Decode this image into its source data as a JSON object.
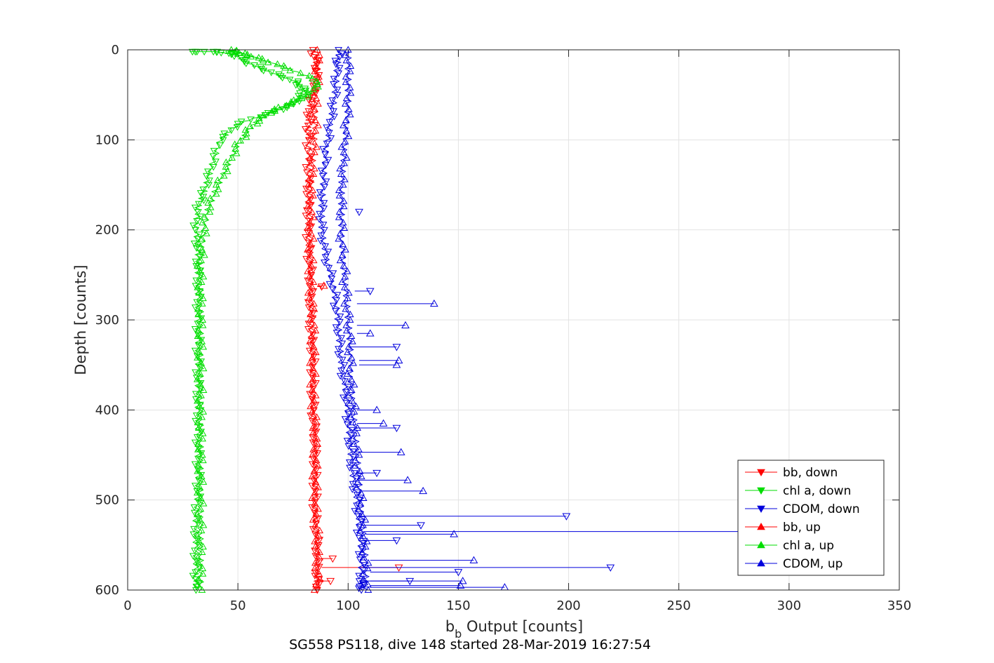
{
  "chart_data": {
    "type": "line",
    "xlabel_main": "b",
    "xlabel_sub": "b",
    "xlabel_rest": " Output [counts]",
    "ylabel": "Depth [counts]",
    "caption": "SG558 PS118, dive 148 started 28-Mar-2019 16:27:54",
    "xlim": [
      0,
      350
    ],
    "ylim": [
      0,
      600
    ],
    "y_reversed": true,
    "grid": true,
    "legend_position": "bottom-right",
    "xticks": [
      "0",
      "50",
      "100",
      "150",
      "200",
      "250",
      "300",
      "350"
    ],
    "yticks": [
      "0",
      "100",
      "200",
      "300",
      "400",
      "500",
      "600"
    ],
    "series": [
      {
        "name": "bb, down",
        "color": "#ff0000",
        "marker": "triangle-down",
        "points": [
          [
            84,
            0
          ],
          [
            86,
            20
          ],
          [
            85,
            40
          ],
          [
            83,
            60
          ],
          [
            82,
            80
          ],
          [
            82,
            100
          ],
          [
            82,
            130
          ],
          [
            82,
            160
          ],
          [
            82,
            190
          ],
          [
            82,
            220
          ],
          [
            83,
            250
          ],
          [
            83,
            280
          ],
          [
            83,
            310
          ],
          [
            84,
            340
          ],
          [
            84,
            370
          ],
          [
            84,
            400
          ],
          [
            85,
            430
          ],
          [
            85,
            460
          ],
          [
            85,
            490
          ],
          [
            85,
            520
          ],
          [
            86,
            550
          ],
          [
            86,
            580
          ],
          [
            86,
            600
          ]
        ],
        "spikes": [
          [
            86,
            263,
            88
          ],
          [
            88,
            565,
            93
          ],
          [
            88,
            575,
            123
          ],
          [
            87,
            590,
            92
          ]
        ]
      },
      {
        "name": "chl a, down",
        "color": "#00dd00",
        "marker": "triangle-down",
        "points": [
          [
            28,
            2
          ],
          [
            40,
            2
          ],
          [
            48,
            5
          ],
          [
            55,
            15
          ],
          [
            65,
            25
          ],
          [
            76,
            35
          ],
          [
            80,
            45
          ],
          [
            76,
            60
          ],
          [
            65,
            70
          ],
          [
            50,
            82
          ],
          [
            42,
            100
          ],
          [
            38,
            130
          ],
          [
            35,
            155
          ],
          [
            32,
            175
          ],
          [
            31,
            200
          ],
          [
            32,
            225
          ],
          [
            32,
            250
          ],
          [
            32,
            280
          ],
          [
            32,
            310
          ],
          [
            32,
            340
          ],
          [
            32,
            370
          ],
          [
            32,
            400
          ],
          [
            32,
            430
          ],
          [
            32,
            460
          ],
          [
            32,
            490
          ],
          [
            31,
            520
          ],
          [
            31,
            550
          ],
          [
            31,
            580
          ],
          [
            31,
            600
          ]
        ],
        "spikes": []
      },
      {
        "name": "CDOM, down",
        "color": "#0000dd",
        "marker": "triangle-down",
        "points": [
          [
            96,
            0
          ],
          [
            95,
            20
          ],
          [
            94,
            50
          ],
          [
            92,
            80
          ],
          [
            90,
            110
          ],
          [
            89,
            140
          ],
          [
            88,
            170
          ],
          [
            88,
            200
          ],
          [
            90,
            230
          ],
          [
            93,
            260
          ],
          [
            95,
            290
          ],
          [
            96,
            320
          ],
          [
            97,
            350
          ],
          [
            99,
            380
          ],
          [
            100,
            410
          ],
          [
            101,
            440
          ],
          [
            102,
            470
          ],
          [
            104,
            500
          ],
          [
            105,
            530
          ],
          [
            106,
            560
          ],
          [
            106,
            590
          ],
          [
            106,
            600
          ]
        ],
        "spikes": [
          [
            104,
            180,
            105
          ],
          [
            103,
            268,
            110
          ],
          [
            100,
            330,
            122
          ],
          [
            104,
            420,
            122
          ],
          [
            104,
            470,
            113
          ],
          [
            105,
            518,
            199
          ],
          [
            106,
            528,
            133
          ],
          [
            106,
            545,
            122
          ],
          [
            108,
            575,
            219
          ],
          [
            110,
            580,
            150
          ],
          [
            108,
            590,
            128
          ]
        ]
      },
      {
        "name": "bb, up",
        "color": "#ff0000",
        "marker": "triangle-up",
        "points": [
          [
            86,
            600
          ],
          [
            86,
            570
          ],
          [
            86,
            540
          ],
          [
            85,
            510
          ],
          [
            85,
            480
          ],
          [
            85,
            450
          ],
          [
            85,
            420
          ],
          [
            84,
            390
          ],
          [
            84,
            360
          ],
          [
            84,
            330
          ],
          [
            84,
            300
          ],
          [
            83,
            270
          ],
          [
            83,
            240
          ],
          [
            83,
            210
          ],
          [
            83,
            180
          ],
          [
            83,
            150
          ],
          [
            84,
            120
          ],
          [
            85,
            90
          ],
          [
            85,
            60
          ],
          [
            86,
            30
          ],
          [
            86,
            0
          ]
        ],
        "spikes": [
          [
            86,
            262,
            89
          ]
        ]
      },
      {
        "name": "chl a, up",
        "color": "#00dd00",
        "marker": "triangle-up",
        "points": [
          [
            33,
            600
          ],
          [
            33,
            570
          ],
          [
            33,
            540
          ],
          [
            33,
            510
          ],
          [
            33,
            480
          ],
          [
            33,
            450
          ],
          [
            33,
            420
          ],
          [
            33,
            390
          ],
          [
            33,
            360
          ],
          [
            33,
            330
          ],
          [
            33,
            300
          ],
          [
            33,
            270
          ],
          [
            33,
            240
          ],
          [
            34,
            210
          ],
          [
            36,
            180
          ],
          [
            40,
            155
          ],
          [
            45,
            130
          ],
          [
            50,
            105
          ],
          [
            56,
            85
          ],
          [
            64,
            70
          ],
          [
            73,
            60
          ],
          [
            82,
            50
          ],
          [
            87,
            35
          ],
          [
            72,
            20
          ],
          [
            60,
            10
          ],
          [
            52,
            4
          ],
          [
            47,
            0
          ]
        ],
        "spikes": []
      },
      {
        "name": "CDOM, up",
        "color": "#0000dd",
        "marker": "triangle-up",
        "points": [
          [
            108,
            600
          ],
          [
            108,
            570
          ],
          [
            107,
            540
          ],
          [
            106,
            510
          ],
          [
            105,
            480
          ],
          [
            104,
            450
          ],
          [
            103,
            420
          ],
          [
            102,
            390
          ],
          [
            101,
            360
          ],
          [
            101,
            330
          ],
          [
            100,
            300
          ],
          [
            99,
            270
          ],
          [
            98,
            240
          ],
          [
            97,
            210
          ],
          [
            97,
            180
          ],
          [
            97,
            150
          ],
          [
            98,
            120
          ],
          [
            99,
            90
          ],
          [
            100,
            60
          ],
          [
            100,
            30
          ],
          [
            100,
            0
          ]
        ],
        "spikes": [
          [
            104,
            282,
            139
          ],
          [
            104,
            306,
            126
          ],
          [
            104,
            315,
            110
          ],
          [
            105,
            345,
            123
          ],
          [
            105,
            350,
            122
          ],
          [
            104,
            400,
            113
          ],
          [
            104,
            415,
            116
          ],
          [
            105,
            447,
            124
          ],
          [
            105,
            478,
            127
          ],
          [
            105,
            490,
            134
          ],
          [
            107,
            535,
            325
          ],
          [
            108,
            538,
            148
          ],
          [
            110,
            567,
            157
          ],
          [
            110,
            597,
            171
          ],
          [
            110,
            590,
            152
          ],
          [
            110,
            595,
            151
          ]
        ]
      }
    ]
  }
}
